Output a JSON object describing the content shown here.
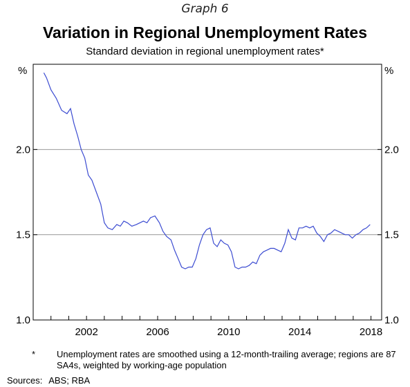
{
  "header": {
    "graph_label": "Graph 6",
    "title": "Variation in Regional Unemployment Rates",
    "subtitle": "Standard deviation in regional unemployment rates*"
  },
  "chart_data": {
    "type": "line",
    "title": "Variation in Regional Unemployment Rates",
    "subtitle": "Standard deviation in regional unemployment rates*",
    "y_unit_left": "%",
    "y_unit_right": "%",
    "ylim": [
      1.0,
      2.5
    ],
    "xlim": [
      1999.0,
      2018.6
    ],
    "yticks": [
      1.0,
      1.5,
      2.0
    ],
    "ytick_labels": [
      "1.0",
      "1.5",
      "2.0"
    ],
    "xticks": [
      2002,
      2006,
      2010,
      2014,
      2018
    ],
    "xtick_labels": [
      "2002",
      "2006",
      "2010",
      "2014",
      "2018"
    ],
    "grid": "horizontal",
    "line_color": "#3b4bd1",
    "series": [
      {
        "x": [
          1999.6,
          1999.75,
          2000.0,
          2000.3,
          2000.6,
          2000.9,
          2001.1,
          2001.3,
          2001.5,
          2001.7,
          2001.9,
          2002.1,
          2002.3,
          2002.55,
          2002.8,
          2003.0,
          2003.2,
          2003.45,
          2003.7,
          2003.9,
          2004.1,
          2004.3,
          2004.55,
          2004.8,
          2005.0,
          2005.2,
          2005.4,
          2005.6,
          2005.85,
          2006.1,
          2006.3,
          2006.5,
          2006.75,
          2006.95,
          2007.15,
          2007.35,
          2007.55,
          2007.75,
          2007.95,
          2008.15,
          2008.35,
          2008.55,
          2008.75,
          2008.95,
          2009.15,
          2009.35,
          2009.55,
          2009.75,
          2009.95,
          2010.15,
          2010.35,
          2010.55,
          2010.75,
          2010.95,
          2011.15,
          2011.35,
          2011.55,
          2011.75,
          2011.95,
          2012.15,
          2012.35,
          2012.55,
          2012.75,
          2012.95,
          2013.15,
          2013.35,
          2013.55,
          2013.75,
          2013.95,
          2014.15,
          2014.35,
          2014.55,
          2014.75,
          2014.95,
          2015.15,
          2015.35,
          2015.55,
          2015.75,
          2015.95,
          2016.15,
          2016.35,
          2016.55,
          2016.75,
          2016.95,
          2017.15,
          2017.35,
          2017.55,
          2017.75,
          2017.95
        ],
        "values": [
          2.45,
          2.42,
          2.35,
          2.3,
          2.23,
          2.21,
          2.24,
          2.15,
          2.08,
          2.0,
          1.95,
          1.85,
          1.82,
          1.75,
          1.68,
          1.57,
          1.54,
          1.53,
          1.56,
          1.55,
          1.58,
          1.57,
          1.55,
          1.56,
          1.57,
          1.58,
          1.57,
          1.6,
          1.61,
          1.57,
          1.52,
          1.49,
          1.47,
          1.41,
          1.36,
          1.31,
          1.3,
          1.31,
          1.31,
          1.36,
          1.44,
          1.5,
          1.53,
          1.54,
          1.45,
          1.43,
          1.47,
          1.45,
          1.44,
          1.4,
          1.31,
          1.3,
          1.31,
          1.31,
          1.32,
          1.34,
          1.33,
          1.38,
          1.4,
          1.41,
          1.42,
          1.42,
          1.41,
          1.4,
          1.45,
          1.53,
          1.48,
          1.47,
          1.54,
          1.54,
          1.55,
          1.54,
          1.55,
          1.51,
          1.49,
          1.46,
          1.5,
          1.51,
          1.53,
          1.52,
          1.51,
          1.5,
          1.5,
          1.48,
          1.5,
          1.51,
          1.53,
          1.54,
          1.56
        ]
      }
    ]
  },
  "footnote": {
    "marker": "*",
    "text": "Unemployment rates are smoothed using a 12-month-trailing average; regions are 87 SA4s, weighted by working-age population"
  },
  "sources": {
    "label": "Sources:",
    "text": "ABS; RBA"
  }
}
